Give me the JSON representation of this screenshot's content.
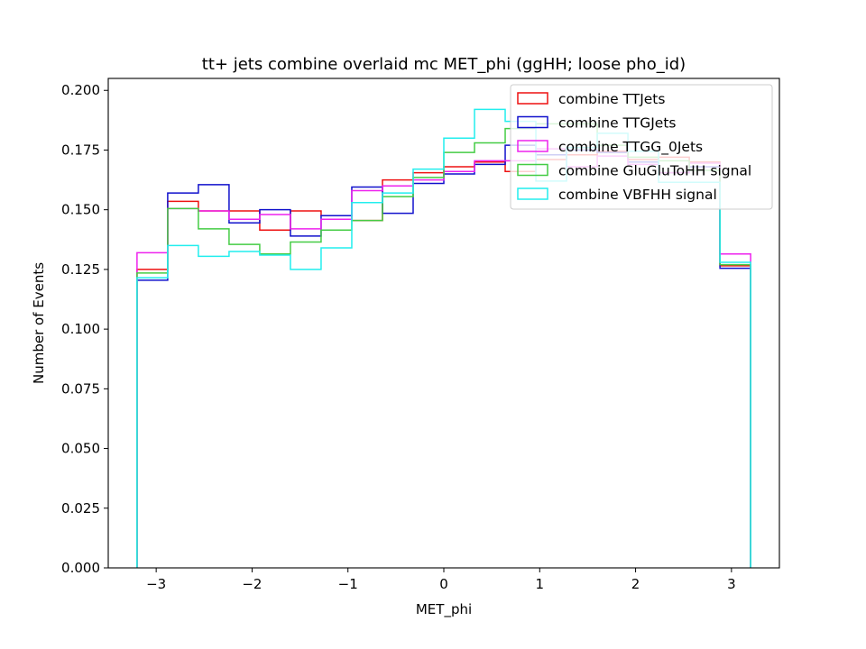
{
  "chart_data": {
    "type": "step-histogram",
    "title": "tt+ jets combine overlaid mc MET_phi (ggHH; loose pho_id)",
    "xlabel": "MET_phi",
    "ylabel": "Number of Events",
    "xlim": [
      -3.5,
      3.5
    ],
    "ylim": [
      0,
      0.205
    ],
    "xticks": [
      -3,
      -2,
      -1,
      0,
      1,
      2,
      3
    ],
    "xtick_labels": [
      "−3",
      "−2",
      "−1",
      "0",
      "1",
      "2",
      "3"
    ],
    "yticks": [
      0.0,
      0.025,
      0.05,
      0.075,
      0.1,
      0.125,
      0.15,
      0.175,
      0.2
    ],
    "ytick_labels": [
      "0.000",
      "0.025",
      "0.050",
      "0.075",
      "0.100",
      "0.125",
      "0.150",
      "0.175",
      "0.200"
    ],
    "bin_edges": [
      -3.2,
      -2.88,
      -2.56,
      -2.24,
      -1.92,
      -1.6,
      -1.28,
      -0.96,
      -0.64,
      -0.32,
      0.0,
      0.32,
      0.64,
      0.96,
      1.28,
      1.6,
      1.92,
      2.24,
      2.56,
      2.88,
      3.2
    ],
    "legend_position": "top-right",
    "grid": false,
    "series": [
      {
        "name": "combine TTJets",
        "color": "#ee1111",
        "values": [
          0.125,
          0.1535,
          0.1495,
          0.1495,
          0.1415,
          0.1495,
          0.1475,
          0.1455,
          0.1625,
          0.1655,
          0.168,
          0.17,
          0.166,
          0.171,
          0.173,
          0.1745,
          0.171,
          0.172,
          0.17,
          0.1265
        ]
      },
      {
        "name": "combine TTGJets",
        "color": "#1111cc",
        "values": [
          0.1205,
          0.157,
          0.1605,
          0.1445,
          0.15,
          0.139,
          0.1475,
          0.1595,
          0.1485,
          0.161,
          0.165,
          0.169,
          0.177,
          0.173,
          0.175,
          0.174,
          0.17,
          0.1655,
          0.168,
          0.1255
        ]
      },
      {
        "name": "combine TTGG_0Jets",
        "color": "#ee22ee",
        "values": [
          0.132,
          0.1505,
          0.1495,
          0.146,
          0.148,
          0.142,
          0.146,
          0.158,
          0.16,
          0.1625,
          0.166,
          0.1705,
          0.1705,
          0.1755,
          0.168,
          0.1725,
          0.169,
          0.1655,
          0.1695,
          0.1315
        ]
      },
      {
        "name": "combine GluGluToHH signal",
        "color": "#44cc44",
        "values": [
          0.1235,
          0.1505,
          0.142,
          0.1355,
          0.1315,
          0.1365,
          0.1415,
          0.1455,
          0.1555,
          0.1635,
          0.174,
          0.178,
          0.184,
          0.186,
          0.186,
          0.177,
          0.172,
          0.1705,
          0.1665,
          0.127
        ]
      },
      {
        "name": "combine VBFHH signal",
        "color": "#22eeee",
        "values": [
          0.1215,
          0.135,
          0.1305,
          0.1325,
          0.131,
          0.125,
          0.134,
          0.153,
          0.157,
          0.167,
          0.18,
          0.192,
          0.187,
          0.162,
          0.176,
          0.182,
          0.1745,
          0.1615,
          0.1615,
          0.128
        ]
      }
    ]
  }
}
